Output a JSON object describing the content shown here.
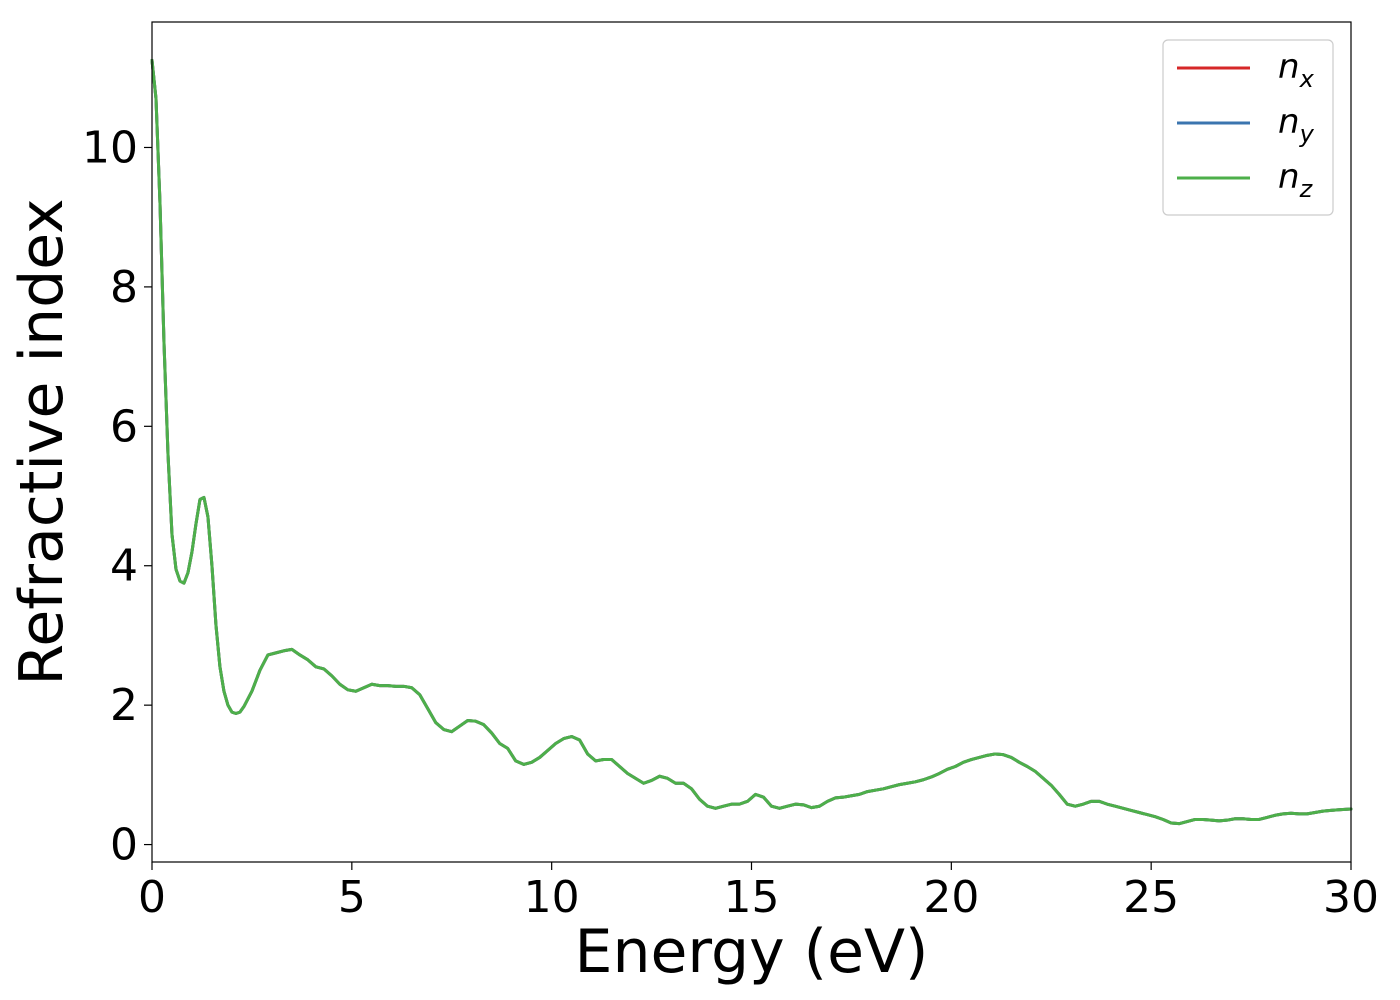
{
  "chart_data": {
    "type": "line",
    "xlabel": "Energy (eV)",
    "ylabel": "Refractive index",
    "xlim": [
      0,
      30
    ],
    "ylim": [
      -0.25,
      11.8
    ],
    "xticks": [
      "0",
      "5",
      "10",
      "15",
      "20",
      "25",
      "30"
    ],
    "yticks": [
      "0",
      "2",
      "4",
      "6",
      "8",
      "10"
    ],
    "grid": false,
    "legend_position": "top-right",
    "series": [
      {
        "name": "n",
        "subscript": "x",
        "color": "#d62728",
        "x": [
          0,
          0.1,
          0.2,
          0.3,
          0.4,
          0.5,
          0.6,
          0.7,
          0.8,
          0.9,
          1.0,
          1.1,
          1.2,
          1.3,
          1.4,
          1.5,
          1.6,
          1.7,
          1.8,
          1.9,
          2.0,
          2.1,
          2.2,
          2.3,
          2.5,
          2.7,
          2.9,
          3.1,
          3.3,
          3.5,
          3.7,
          3.9,
          4.1,
          4.3,
          4.5,
          4.7,
          4.9,
          5.1,
          5.3,
          5.5,
          5.7,
          5.9,
          6.1,
          6.3,
          6.5,
          6.7,
          6.9,
          7.1,
          7.3,
          7.5,
          7.7,
          7.9,
          8.1,
          8.3,
          8.5,
          8.7,
          8.9,
          9.1,
          9.3,
          9.5,
          9.7,
          9.9,
          10.1,
          10.3,
          10.5,
          10.7,
          10.9,
          11.1,
          11.3,
          11.5,
          11.7,
          11.9,
          12.1,
          12.3,
          12.5,
          12.7,
          12.9,
          13.1,
          13.3,
          13.5,
          13.7,
          13.9,
          14.1,
          14.3,
          14.5,
          14.7,
          14.9,
          15.1,
          15.3,
          15.5,
          15.7,
          15.9,
          16.1,
          16.3,
          16.5,
          16.7,
          16.9,
          17.1,
          17.3,
          17.5,
          17.7,
          17.9,
          18.1,
          18.3,
          18.5,
          18.7,
          18.9,
          19.1,
          19.3,
          19.5,
          19.7,
          19.9,
          20.1,
          20.3,
          20.5,
          20.7,
          20.9,
          21.1,
          21.3,
          21.5,
          21.7,
          21.9,
          22.1,
          22.3,
          22.5,
          22.7,
          22.9,
          23.1,
          23.3,
          23.5,
          23.7,
          23.9,
          24.1,
          24.3,
          24.5,
          24.7,
          24.9,
          25.1,
          25.3,
          25.5,
          25.7,
          25.9,
          26.1,
          26.3,
          26.5,
          26.7,
          26.9,
          27.1,
          27.3,
          27.5,
          27.7,
          27.9,
          28.1,
          28.3,
          28.5,
          28.7,
          28.9,
          29.1,
          29.3,
          29.5,
          29.7,
          30.0
        ],
        "values": [
          11.25,
          10.7,
          9.2,
          7.2,
          5.6,
          4.45,
          3.95,
          3.78,
          3.75,
          3.9,
          4.2,
          4.6,
          4.95,
          4.98,
          4.7,
          4.0,
          3.15,
          2.55,
          2.2,
          2.0,
          1.9,
          1.88,
          1.9,
          1.98,
          2.2,
          2.5,
          2.72,
          2.75,
          2.78,
          2.8,
          2.72,
          2.65,
          2.55,
          2.52,
          2.42,
          2.3,
          2.22,
          2.2,
          2.25,
          2.3,
          2.28,
          2.28,
          2.27,
          2.27,
          2.25,
          2.15,
          1.95,
          1.75,
          1.65,
          1.62,
          1.7,
          1.78,
          1.77,
          1.72,
          1.6,
          1.45,
          1.38,
          1.2,
          1.15,
          1.18,
          1.25,
          1.35,
          1.45,
          1.52,
          1.55,
          1.5,
          1.3,
          1.2,
          1.22,
          1.22,
          1.12,
          1.02,
          0.95,
          0.88,
          0.92,
          0.98,
          0.95,
          0.88,
          0.88,
          0.8,
          0.65,
          0.55,
          0.52,
          0.55,
          0.58,
          0.58,
          0.62,
          0.72,
          0.68,
          0.55,
          0.52,
          0.55,
          0.58,
          0.57,
          0.53,
          0.55,
          0.62,
          0.67,
          0.68,
          0.7,
          0.72,
          0.76,
          0.78,
          0.8,
          0.83,
          0.86,
          0.88,
          0.9,
          0.93,
          0.97,
          1.02,
          1.08,
          1.12,
          1.18,
          1.22,
          1.25,
          1.28,
          1.3,
          1.29,
          1.25,
          1.18,
          1.12,
          1.05,
          0.95,
          0.85,
          0.72,
          0.58,
          0.55,
          0.58,
          0.62,
          0.62,
          0.58,
          0.55,
          0.52,
          0.49,
          0.46,
          0.43,
          0.4,
          0.36,
          0.31,
          0.3,
          0.33,
          0.36,
          0.36,
          0.35,
          0.34,
          0.35,
          0.37,
          0.37,
          0.36,
          0.36,
          0.39,
          0.42,
          0.44,
          0.45,
          0.44,
          0.44,
          0.46,
          0.48,
          0.49,
          0.5,
          0.51
        ]
      },
      {
        "name": "n",
        "subscript": "y",
        "color": "#3b75af",
        "x": [
          0,
          0.1,
          0.2,
          0.3,
          0.4,
          0.5,
          0.6,
          0.7,
          0.8,
          0.9,
          1.0,
          1.1,
          1.2,
          1.3,
          1.4,
          1.5,
          1.6,
          1.7,
          1.8,
          1.9,
          2.0,
          2.1,
          2.2,
          2.3,
          2.5,
          2.7,
          2.9,
          3.1,
          3.3,
          3.5,
          3.7,
          3.9,
          4.1,
          4.3,
          4.5,
          4.7,
          4.9,
          5.1,
          5.3,
          5.5,
          5.7,
          5.9,
          6.1,
          6.3,
          6.5,
          6.7,
          6.9,
          7.1,
          7.3,
          7.5,
          7.7,
          7.9,
          8.1,
          8.3,
          8.5,
          8.7,
          8.9,
          9.1,
          9.3,
          9.5,
          9.7,
          9.9,
          10.1,
          10.3,
          10.5,
          10.7,
          10.9,
          11.1,
          11.3,
          11.5,
          11.7,
          11.9,
          12.1,
          12.3,
          12.5,
          12.7,
          12.9,
          13.1,
          13.3,
          13.5,
          13.7,
          13.9,
          14.1,
          14.3,
          14.5,
          14.7,
          14.9,
          15.1,
          15.3,
          15.5,
          15.7,
          15.9,
          16.1,
          16.3,
          16.5,
          16.7,
          16.9,
          17.1,
          17.3,
          17.5,
          17.7,
          17.9,
          18.1,
          18.3,
          18.5,
          18.7,
          18.9,
          19.1,
          19.3,
          19.5,
          19.7,
          19.9,
          20.1,
          20.3,
          20.5,
          20.7,
          20.9,
          21.1,
          21.3,
          21.5,
          21.7,
          21.9,
          22.1,
          22.3,
          22.5,
          22.7,
          22.9,
          23.1,
          23.3,
          23.5,
          23.7,
          23.9,
          24.1,
          24.3,
          24.5,
          24.7,
          24.9,
          25.1,
          25.3,
          25.5,
          25.7,
          25.9,
          26.1,
          26.3,
          26.5,
          26.7,
          26.9,
          27.1,
          27.3,
          27.5,
          27.7,
          27.9,
          28.1,
          28.3,
          28.5,
          28.7,
          28.9,
          29.1,
          29.3,
          29.5,
          29.7,
          30.0
        ],
        "values": [
          11.25,
          10.7,
          9.2,
          7.2,
          5.6,
          4.45,
          3.95,
          3.78,
          3.75,
          3.9,
          4.2,
          4.6,
          4.95,
          4.98,
          4.7,
          4.0,
          3.15,
          2.55,
          2.2,
          2.0,
          1.9,
          1.88,
          1.9,
          1.98,
          2.2,
          2.5,
          2.72,
          2.75,
          2.78,
          2.8,
          2.72,
          2.65,
          2.55,
          2.52,
          2.42,
          2.3,
          2.22,
          2.2,
          2.25,
          2.3,
          2.28,
          2.28,
          2.27,
          2.27,
          2.25,
          2.15,
          1.95,
          1.75,
          1.65,
          1.62,
          1.7,
          1.78,
          1.77,
          1.72,
          1.6,
          1.45,
          1.38,
          1.2,
          1.15,
          1.18,
          1.25,
          1.35,
          1.45,
          1.52,
          1.55,
          1.5,
          1.3,
          1.2,
          1.22,
          1.22,
          1.12,
          1.02,
          0.95,
          0.88,
          0.92,
          0.98,
          0.95,
          0.88,
          0.88,
          0.8,
          0.65,
          0.55,
          0.52,
          0.55,
          0.58,
          0.58,
          0.62,
          0.72,
          0.68,
          0.55,
          0.52,
          0.55,
          0.58,
          0.57,
          0.53,
          0.55,
          0.62,
          0.67,
          0.68,
          0.7,
          0.72,
          0.76,
          0.78,
          0.8,
          0.83,
          0.86,
          0.88,
          0.9,
          0.93,
          0.97,
          1.02,
          1.08,
          1.12,
          1.18,
          1.22,
          1.25,
          1.28,
          1.3,
          1.29,
          1.25,
          1.18,
          1.12,
          1.05,
          0.95,
          0.85,
          0.72,
          0.58,
          0.55,
          0.58,
          0.62,
          0.62,
          0.58,
          0.55,
          0.52,
          0.49,
          0.46,
          0.43,
          0.4,
          0.36,
          0.31,
          0.3,
          0.33,
          0.36,
          0.36,
          0.35,
          0.34,
          0.35,
          0.37,
          0.37,
          0.36,
          0.36,
          0.39,
          0.42,
          0.44,
          0.45,
          0.44,
          0.44,
          0.46,
          0.48,
          0.49,
          0.5,
          0.51
        ]
      },
      {
        "name": "n",
        "subscript": "z",
        "color": "#4daf4a",
        "x": [
          0,
          0.1,
          0.2,
          0.3,
          0.4,
          0.5,
          0.6,
          0.7,
          0.8,
          0.9,
          1.0,
          1.1,
          1.2,
          1.3,
          1.4,
          1.5,
          1.6,
          1.7,
          1.8,
          1.9,
          2.0,
          2.1,
          2.2,
          2.3,
          2.5,
          2.7,
          2.9,
          3.1,
          3.3,
          3.5,
          3.7,
          3.9,
          4.1,
          4.3,
          4.5,
          4.7,
          4.9,
          5.1,
          5.3,
          5.5,
          5.7,
          5.9,
          6.1,
          6.3,
          6.5,
          6.7,
          6.9,
          7.1,
          7.3,
          7.5,
          7.7,
          7.9,
          8.1,
          8.3,
          8.5,
          8.7,
          8.9,
          9.1,
          9.3,
          9.5,
          9.7,
          9.9,
          10.1,
          10.3,
          10.5,
          10.7,
          10.9,
          11.1,
          11.3,
          11.5,
          11.7,
          11.9,
          12.1,
          12.3,
          12.5,
          12.7,
          12.9,
          13.1,
          13.3,
          13.5,
          13.7,
          13.9,
          14.1,
          14.3,
          14.5,
          14.7,
          14.9,
          15.1,
          15.3,
          15.5,
          15.7,
          15.9,
          16.1,
          16.3,
          16.5,
          16.7,
          16.9,
          17.1,
          17.3,
          17.5,
          17.7,
          17.9,
          18.1,
          18.3,
          18.5,
          18.7,
          18.9,
          19.1,
          19.3,
          19.5,
          19.7,
          19.9,
          20.1,
          20.3,
          20.5,
          20.7,
          20.9,
          21.1,
          21.3,
          21.5,
          21.7,
          21.9,
          22.1,
          22.3,
          22.5,
          22.7,
          22.9,
          23.1,
          23.3,
          23.5,
          23.7,
          23.9,
          24.1,
          24.3,
          24.5,
          24.7,
          24.9,
          25.1,
          25.3,
          25.5,
          25.7,
          25.9,
          26.1,
          26.3,
          26.5,
          26.7,
          26.9,
          27.1,
          27.3,
          27.5,
          27.7,
          27.9,
          28.1,
          28.3,
          28.5,
          28.7,
          28.9,
          29.1,
          29.3,
          29.5,
          29.7,
          30.0
        ],
        "values": [
          11.25,
          10.7,
          9.2,
          7.2,
          5.6,
          4.45,
          3.95,
          3.78,
          3.75,
          3.9,
          4.2,
          4.6,
          4.95,
          4.98,
          4.7,
          4.0,
          3.15,
          2.55,
          2.2,
          2.0,
          1.9,
          1.88,
          1.9,
          1.98,
          2.2,
          2.5,
          2.72,
          2.75,
          2.78,
          2.8,
          2.72,
          2.65,
          2.55,
          2.52,
          2.42,
          2.3,
          2.22,
          2.2,
          2.25,
          2.3,
          2.28,
          2.28,
          2.27,
          2.27,
          2.25,
          2.15,
          1.95,
          1.75,
          1.65,
          1.62,
          1.7,
          1.78,
          1.77,
          1.72,
          1.6,
          1.45,
          1.38,
          1.2,
          1.15,
          1.18,
          1.25,
          1.35,
          1.45,
          1.52,
          1.55,
          1.5,
          1.3,
          1.2,
          1.22,
          1.22,
          1.12,
          1.02,
          0.95,
          0.88,
          0.92,
          0.98,
          0.95,
          0.88,
          0.88,
          0.8,
          0.65,
          0.55,
          0.52,
          0.55,
          0.58,
          0.58,
          0.62,
          0.72,
          0.68,
          0.55,
          0.52,
          0.55,
          0.58,
          0.57,
          0.53,
          0.55,
          0.62,
          0.67,
          0.68,
          0.7,
          0.72,
          0.76,
          0.78,
          0.8,
          0.83,
          0.86,
          0.88,
          0.9,
          0.93,
          0.97,
          1.02,
          1.08,
          1.12,
          1.18,
          1.22,
          1.25,
          1.28,
          1.3,
          1.29,
          1.25,
          1.18,
          1.12,
          1.05,
          0.95,
          0.85,
          0.72,
          0.58,
          0.55,
          0.58,
          0.62,
          0.62,
          0.58,
          0.55,
          0.52,
          0.49,
          0.46,
          0.43,
          0.4,
          0.36,
          0.31,
          0.3,
          0.33,
          0.36,
          0.36,
          0.35,
          0.34,
          0.35,
          0.37,
          0.37,
          0.36,
          0.36,
          0.39,
          0.42,
          0.44,
          0.45,
          0.44,
          0.44,
          0.46,
          0.48,
          0.49,
          0.5,
          0.51
        ]
      }
    ]
  }
}
